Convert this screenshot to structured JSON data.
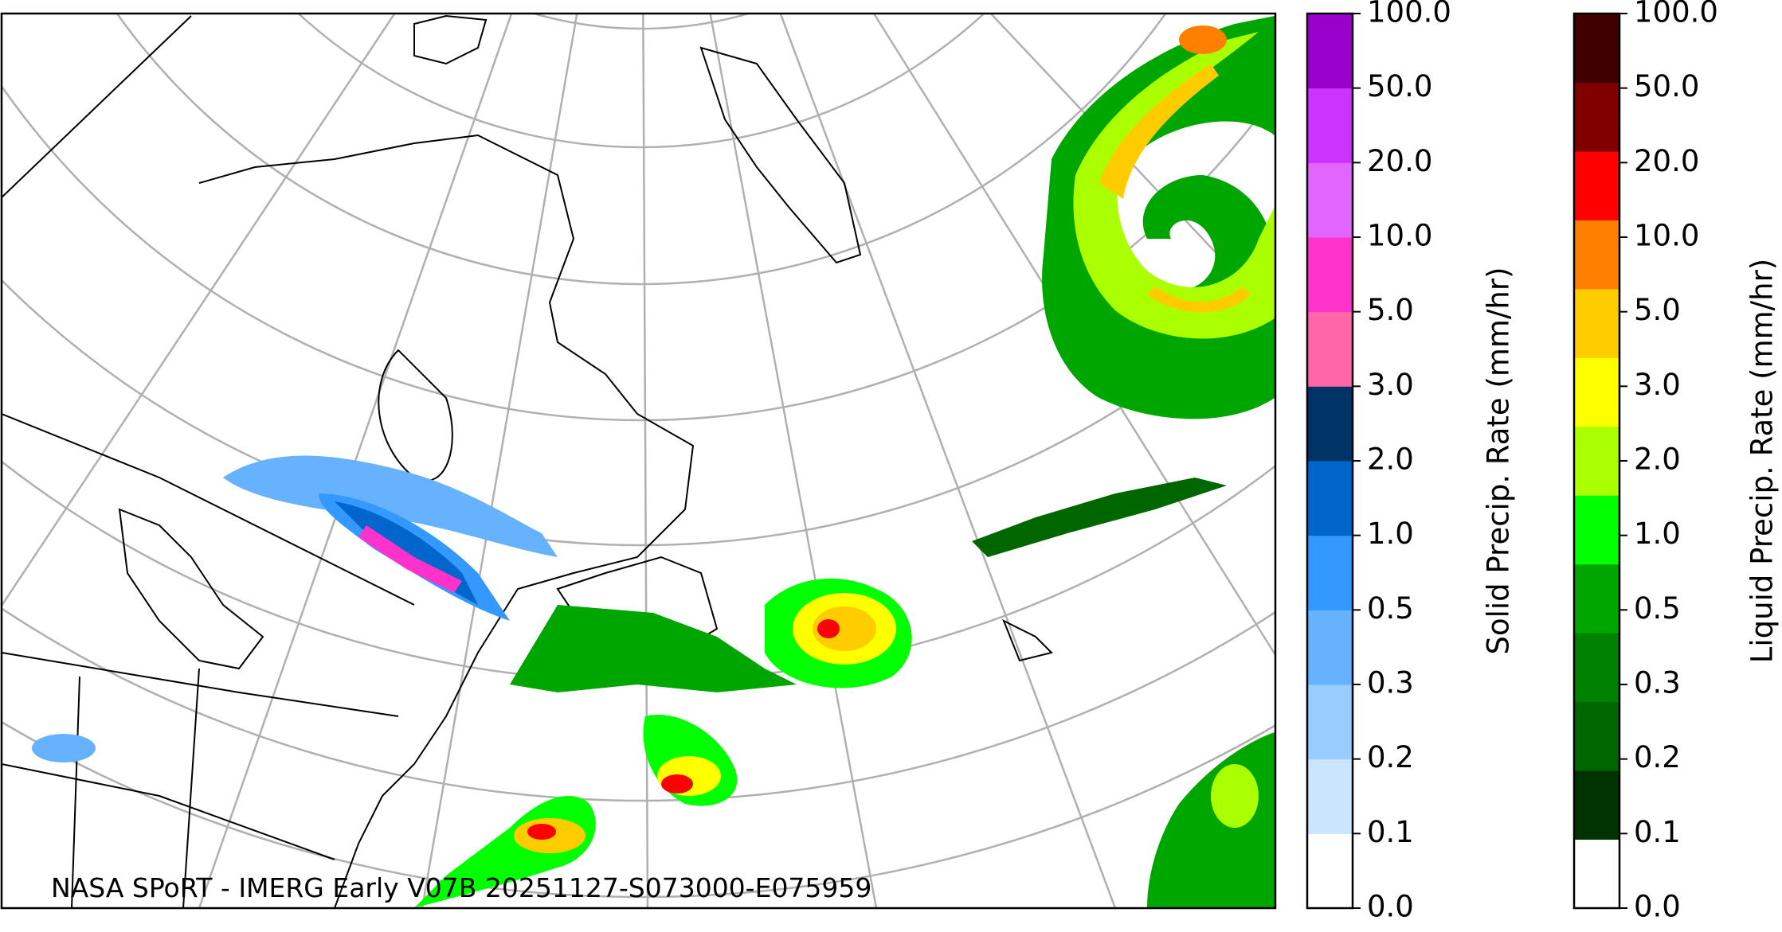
{
  "map": {
    "caption": "NASA SPoRT - IMERG Early V07B 20251127-S073000-E075959"
  },
  "colorbars": [
    {
      "label": "Solid Precip. Rate (mm/hr)",
      "ticks": [
        "0.0",
        "0.1",
        "0.2",
        "0.3",
        "0.5",
        "1.0",
        "2.0",
        "3.0",
        "5.0",
        "10.0",
        "20.0",
        "50.0",
        "100.0"
      ],
      "colors": [
        "#ffffff",
        "#cce5ff",
        "#99ccff",
        "#66b2ff",
        "#3399ff",
        "#0066cc",
        "#003366",
        "#ff66a8",
        "#ff33cc",
        "#e066ff",
        "#cc33ff",
        "#9900cc"
      ]
    },
    {
      "label": "Liquid Precip. Rate (mm/hr)",
      "ticks": [
        "0.0",
        "0.1",
        "0.2",
        "0.3",
        "0.5",
        "1.0",
        "2.0",
        "3.0",
        "5.0",
        "10.0",
        "20.0",
        "50.0",
        "100.0"
      ],
      "colors": [
        "#ffffff",
        "#003300",
        "#006600",
        "#008000",
        "#00a600",
        "#00ff00",
        "#aaff00",
        "#ffff00",
        "#ffcc00",
        "#ff8000",
        "#ff0000",
        "#800000",
        "#400000"
      ]
    }
  ]
}
